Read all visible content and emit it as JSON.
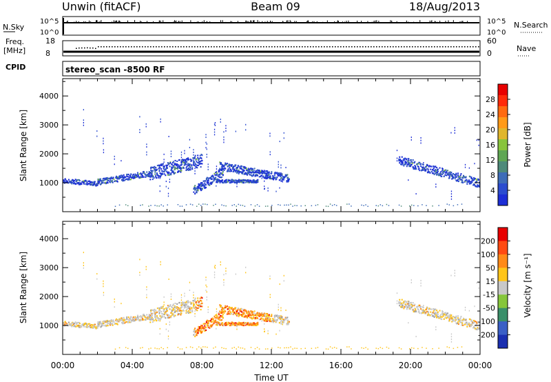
{
  "header": {
    "radar": "Unwin (fitACF)",
    "beam": "Beam 09",
    "date": "18/Aug/2013"
  },
  "top_panels": {
    "nsky_label": "N.Sky",
    "nsky_ticks": [
      "10^5",
      "10^0"
    ],
    "nsearch_label": "N.Search",
    "nsearch_ticks": [
      "10^5",
      "10^0"
    ],
    "freq_label": "Freq.",
    "freq_unit": "[MHz]",
    "freq_ticks": [
      "18",
      "8"
    ],
    "nave_label": "Nave",
    "nave_ticks": [
      "60",
      "0"
    ],
    "cpid_label": "CPID",
    "cpid_value": "stereo_scan -8500 RF"
  },
  "chart_data": [
    {
      "type": "heatmap",
      "name": "power-panel",
      "ylabel": "Slant Range [km]",
      "ylim": [
        0,
        4600
      ],
      "yticks": [
        "1000",
        "2000",
        "3000",
        "4000"
      ],
      "xlim": [
        0,
        24
      ],
      "colorbar": {
        "label": "Power [dB]",
        "ticks": [
          "28",
          "24",
          "20",
          "16",
          "12",
          "8",
          "4"
        ],
        "range": [
          0,
          32
        ],
        "colors": [
          "#1d2ed6",
          "#2b4ccf",
          "#3e6cb8",
          "#4e8a7a",
          "#5fa653",
          "#88c43c",
          "#e0b62c",
          "#ff9a18",
          "#ff6a10",
          "#ff2a0a",
          "#e80000"
        ]
      }
    },
    {
      "type": "heatmap",
      "name": "velocity-panel",
      "xlabel": "Time UT",
      "ylabel": "Slant Range [km]",
      "ylim": [
        0,
        4600
      ],
      "yticks": [
        "1000",
        "2000",
        "3000",
        "4000"
      ],
      "xlim": [
        0,
        24
      ],
      "xticks": [
        "00:00",
        "04:00",
        "08:00",
        "12:00",
        "16:00",
        "20:00",
        "00:00"
      ],
      "colorbar": {
        "label": "Velocity [m s⁻¹]",
        "ticks": [
          "200",
          "100",
          "50",
          "15",
          "-15",
          "-50",
          "-100",
          "-200"
        ],
        "colors": [
          "#1a2fb0",
          "#3a5fc6",
          "#3a8f6a",
          "#86c63b",
          "#c8c8c8",
          "#ffc51a",
          "#ff8a18",
          "#ff4a12",
          "#e80000"
        ]
      }
    }
  ]
}
